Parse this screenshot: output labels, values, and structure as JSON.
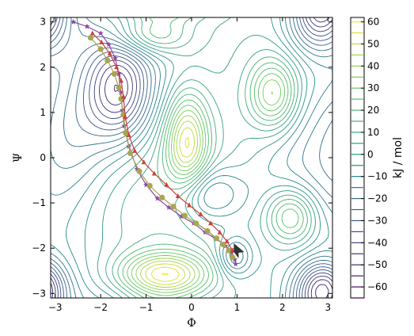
{
  "chart_data": {
    "type": "contour",
    "title": "",
    "xlabel": "Φ",
    "ylabel": "Ψ",
    "xlim": [
      -3.1,
      3.1
    ],
    "ylim": [
      -3.1,
      3.1
    ],
    "xticks": [
      "−3",
      "−2",
      "−1",
      "0",
      "1",
      "2",
      "3"
    ],
    "yticks": [
      "−3",
      "−2",
      "−1",
      "0",
      "1",
      "2",
      "3"
    ],
    "grid": false,
    "colorbar": {
      "label": "kJ / mol",
      "range": [
        -65,
        62
      ],
      "ticks": [
        "60",
        "50",
        "40",
        "30",
        "20",
        "10",
        "0",
        "−10",
        "−20",
        "−30",
        "−40",
        "−50",
        "−60"
      ],
      "colormap": "viridis",
      "contour_step": 5
    },
    "energy_surface_description": "free-energy landscape over (Φ, Ψ) torsion angles",
    "series": [
      {
        "marker": "star",
        "color": "#8a4aa8",
        "x": [
          -2.6,
          -2.3,
          -2.0,
          -1.82,
          -1.68,
          -1.6,
          -1.56,
          -1.52,
          -1.48,
          -1.38,
          -1.2,
          -1.0,
          -0.75,
          -0.5,
          -0.22,
          0.05,
          0.3,
          0.55,
          0.75,
          0.88,
          0.95,
          0.97
        ],
        "y": [
          3.0,
          2.9,
          2.75,
          2.5,
          2.2,
          1.85,
          1.45,
          1.05,
          0.7,
          0.25,
          -0.25,
          -0.6,
          -0.9,
          -1.1,
          -1.3,
          -1.45,
          -1.65,
          -1.8,
          -1.95,
          -2.1,
          -2.25,
          -2.35
        ]
      },
      {
        "marker": "circle",
        "color": "#a8a652",
        "x": [
          -2.22,
          -2.0,
          -1.85,
          -1.7,
          -1.6,
          -1.55,
          -1.5,
          -1.45,
          -1.35,
          -1.15,
          -0.92,
          -0.65,
          -0.4,
          -0.15,
          0.1,
          0.35,
          0.55,
          0.7,
          0.82,
          0.9
        ],
        "y": [
          2.65,
          2.4,
          2.15,
          1.85,
          1.55,
          1.3,
          0.95,
          0.55,
          0.1,
          -0.3,
          -0.62,
          -0.88,
          -1.08,
          -1.28,
          -1.45,
          -1.62,
          -1.78,
          -1.92,
          -2.05,
          -2.2
        ]
      },
      {
        "marker": "triangle",
        "color": "#c8423a",
        "x": [
          -2.18,
          -1.98,
          -1.8,
          -1.65,
          -1.55,
          -1.5,
          -1.46,
          -1.38,
          -1.25,
          -1.05,
          -0.82,
          -0.55,
          -0.3,
          -0.05,
          0.2,
          0.42,
          0.62,
          0.78,
          0.9
        ],
        "y": [
          2.75,
          2.55,
          2.3,
          2.0,
          1.7,
          1.35,
          0.9,
          0.5,
          0.15,
          -0.1,
          -0.35,
          -0.6,
          -0.85,
          -1.05,
          -1.25,
          -1.45,
          -1.65,
          -1.85,
          -2.05
        ]
      }
    ],
    "annotations": [
      {
        "shape": "arrow",
        "color": "#333333",
        "x": 1.0,
        "y": -2.05
      }
    ]
  }
}
